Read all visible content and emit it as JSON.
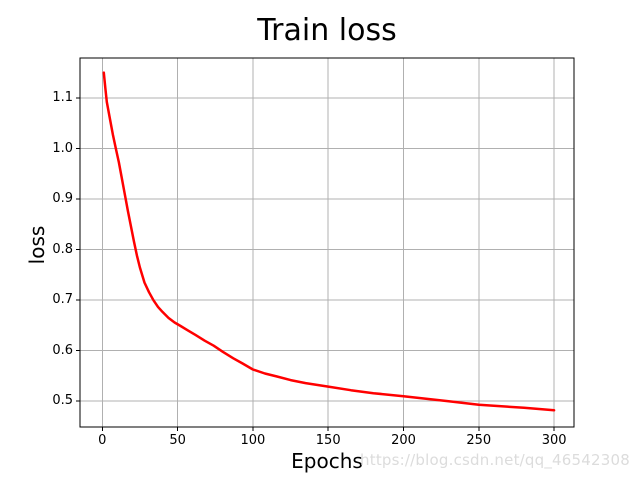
{
  "figure": {
    "background": "#ffffff"
  },
  "watermark": {
    "text": "https://blog.csdn.net/qq_46542308",
    "color": "#dcdcdc"
  },
  "chart_data": {
    "type": "line",
    "title": "Train loss",
    "xlabel": "Epochs",
    "ylabel": "loss",
    "x_ticks": [
      0,
      50,
      100,
      150,
      200,
      250,
      300
    ],
    "y_ticks": [
      0.5,
      0.6,
      0.7,
      0.8,
      0.9,
      1.0,
      1.1
    ],
    "xlim": [
      -14.8,
      313.2
    ],
    "ylim": [
      0.448,
      1.179
    ],
    "grid": true,
    "legend": false,
    "line_color": "#ff0000",
    "grid_color": "#b0b0b0",
    "spine_color": "#000000",
    "tick_color": "#000000",
    "series": [
      {
        "name": "train loss",
        "x": [
          1,
          2,
          3,
          5,
          7,
          9,
          11,
          13,
          15,
          17,
          19,
          21,
          23,
          25,
          28,
          31,
          34,
          37,
          40,
          44,
          48,
          52,
          57,
          62,
          68,
          74,
          80,
          87,
          93,
          100,
          108,
          116,
          125,
          135,
          150,
          165,
          180,
          200,
          215,
          230,
          250,
          265,
          280,
          300
        ],
        "y": [
          1.15,
          1.12,
          1.092,
          1.06,
          1.028,
          1.0,
          0.972,
          0.94,
          0.908,
          0.876,
          0.846,
          0.816,
          0.788,
          0.764,
          0.734,
          0.715,
          0.699,
          0.686,
          0.676,
          0.664,
          0.655,
          0.648,
          0.639,
          0.63,
          0.619,
          0.609,
          0.597,
          0.584,
          0.574,
          0.562,
          0.554,
          0.548,
          0.541,
          0.535,
          0.528,
          0.521,
          0.515,
          0.509,
          0.504,
          0.499,
          0.492,
          0.489,
          0.486,
          0.481
        ]
      }
    ]
  }
}
